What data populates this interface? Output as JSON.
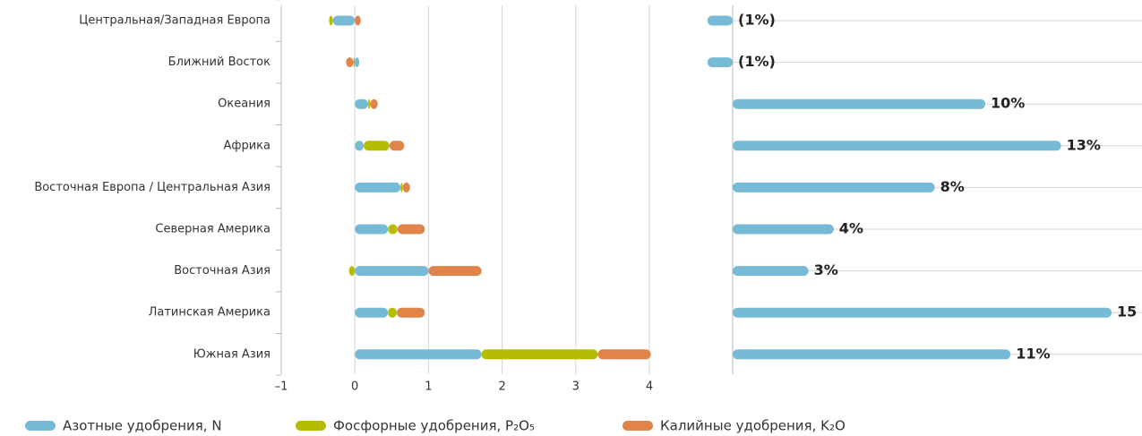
{
  "chart_data": [
    {
      "type": "bar",
      "orientation": "horizontal",
      "stacked": true,
      "categories": [
        "Центральная/Западная Европа",
        "Ближний Восток",
        "Океания",
        "Африка",
        "Восточная Европа / Центральная Азия",
        "Северная Америка",
        "Восточная Азия",
        "Латинская Америка",
        "Южная Азия"
      ],
      "series": [
        {
          "name": "Азотные удобрения, N",
          "color": "#77bad6",
          "values": [
            -0.3,
            0.06,
            0.18,
            0.12,
            0.62,
            0.45,
            1.0,
            0.45,
            1.72
          ]
        },
        {
          "name": "Фосфорные удобрения, P₂O₅",
          "color": "#b4bd00",
          "values": [
            -0.05,
            -0.02,
            0.03,
            0.35,
            0.03,
            0.13,
            -0.08,
            0.12,
            1.58
          ]
        },
        {
          "name": "Калийные удобрения, K₂O",
          "color": "#e0844a",
          "values": [
            0.08,
            -0.1,
            0.1,
            0.2,
            0.1,
            0.37,
            0.72,
            0.38,
            0.72
          ]
        }
      ],
      "xlim": [
        -1,
        4
      ],
      "xticks": [
        {
          "value": -1,
          "label": "–1"
        },
        0,
        1,
        2,
        3,
        4
      ],
      "grid": true
    },
    {
      "type": "bar",
      "orientation": "horizontal",
      "color": "#77bad6",
      "values": [
        -1,
        -1,
        10,
        13,
        8,
        4,
        3,
        15,
        11
      ],
      "value_labels": [
        "(1%)",
        "(1%)",
        "10%",
        "13%",
        "8%",
        "4%",
        "3%",
        "15",
        "11%"
      ]
    }
  ]
}
